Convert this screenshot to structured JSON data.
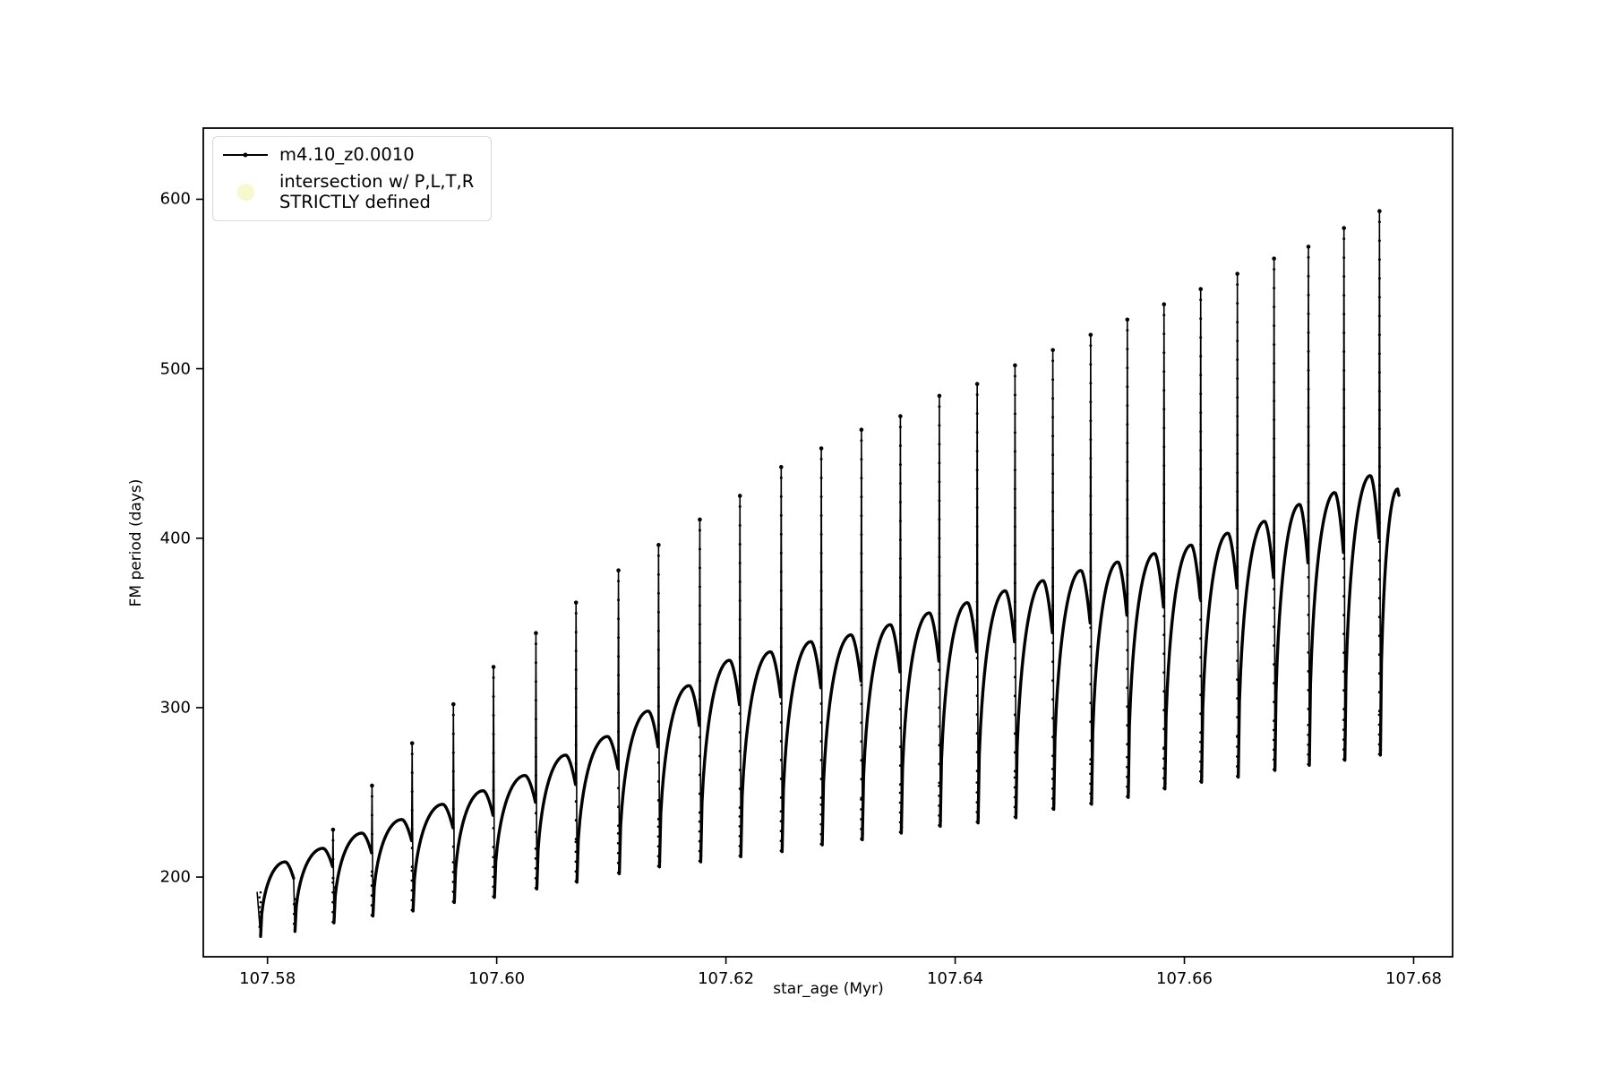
{
  "chart_data": {
    "type": "line",
    "title": "",
    "xlabel": "star_age (Myr)",
    "ylabel": "FM period (days)",
    "xlim": [
      107.5744,
      107.6834
    ],
    "ylim": [
      153,
      642
    ],
    "grid": false,
    "x_ticks": [
      {
        "v": 107.58,
        "label": "107.58"
      },
      {
        "v": 107.6,
        "label": "107.60"
      },
      {
        "v": 107.62,
        "label": "107.62"
      },
      {
        "v": 107.64,
        "label": "107.64"
      },
      {
        "v": 107.66,
        "label": "107.66"
      },
      {
        "v": 107.68,
        "label": "107.68"
      }
    ],
    "y_ticks": [
      {
        "v": 200,
        "label": "200"
      },
      {
        "v": 300,
        "label": "300"
      },
      {
        "v": 400,
        "label": "400"
      },
      {
        "v": 500,
        "label": "500"
      },
      {
        "v": 600,
        "label": "600"
      }
    ],
    "legend": {
      "position": "upper left",
      "entries": [
        {
          "label": "m4.10_z0.0010",
          "marker": "line-with-dot",
          "color": "#000000"
        },
        {
          "line1": "intersection w/ P,L,T,R",
          "line2": "STRICTLY defined",
          "marker": "circle",
          "color": "#f8f8cd"
        }
      ]
    },
    "series": [
      {
        "name": "m4.10_z0.0010",
        "color": "#000000",
        "marker": ".",
        "pattern": "rising scalloped arcs with narrow V dips and tall thin upward spikes at each cycle boundary",
        "start_point": {
          "x": 107.5791,
          "y": 191
        },
        "end_point": {
          "x": 107.6786,
          "y": 429
        },
        "cycles": [
          {
            "x": 107.5794,
            "dip": 165,
            "arc_top": 209,
            "spike": null
          },
          {
            "x": 107.5824,
            "dip": 168,
            "arc_top": 217,
            "spike": null
          },
          {
            "x": 107.5858,
            "dip": 173,
            "arc_top": 226,
            "spike": 228
          },
          {
            "x": 107.5892,
            "dip": 177,
            "arc_top": 234,
            "spike": 254
          },
          {
            "x": 107.5927,
            "dip": 180,
            "arc_top": 243,
            "spike": 279
          },
          {
            "x": 107.5963,
            "dip": 185,
            "arc_top": 251,
            "spike": 302
          },
          {
            "x": 107.5998,
            "dip": 188,
            "arc_top": 260,
            "spike": 324
          },
          {
            "x": 107.6035,
            "dip": 193,
            "arc_top": 272,
            "spike": 344
          },
          {
            "x": 107.607,
            "dip": 197,
            "arc_top": 283,
            "spike": 362
          },
          {
            "x": 107.6107,
            "dip": 202,
            "arc_top": 298,
            "spike": 381
          },
          {
            "x": 107.6142,
            "dip": 206,
            "arc_top": 313,
            "spike": 396
          },
          {
            "x": 107.6178,
            "dip": 209,
            "arc_top": 328,
            "spike": 411
          },
          {
            "x": 107.6213,
            "dip": 212,
            "arc_top": 333,
            "spike": 425
          },
          {
            "x": 107.6249,
            "dip": 215,
            "arc_top": 339,
            "spike": 442
          },
          {
            "x": 107.6284,
            "dip": 219,
            "arc_top": 343,
            "spike": 453
          },
          {
            "x": 107.6319,
            "dip": 222,
            "arc_top": 349,
            "spike": 464
          },
          {
            "x": 107.6353,
            "dip": 226,
            "arc_top": 356,
            "spike": 472
          },
          {
            "x": 107.6387,
            "dip": 230,
            "arc_top": 362,
            "spike": 484
          },
          {
            "x": 107.642,
            "dip": 232,
            "arc_top": 369,
            "spike": 491
          },
          {
            "x": 107.6453,
            "dip": 235,
            "arc_top": 375,
            "spike": 502
          },
          {
            "x": 107.6486,
            "dip": 240,
            "arc_top": 381,
            "spike": 511
          },
          {
            "x": 107.6519,
            "dip": 243,
            "arc_top": 386,
            "spike": 520
          },
          {
            "x": 107.6551,
            "dip": 247,
            "arc_top": 391,
            "spike": 529
          },
          {
            "x": 107.6583,
            "dip": 252,
            "arc_top": 396,
            "spike": 538
          },
          {
            "x": 107.6615,
            "dip": 256,
            "arc_top": 403,
            "spike": 547
          },
          {
            "x": 107.6647,
            "dip": 259,
            "arc_top": 410,
            "spike": 556
          },
          {
            "x": 107.6679,
            "dip": 263,
            "arc_top": 420,
            "spike": 565
          },
          {
            "x": 107.6709,
            "dip": 266,
            "arc_top": 427,
            "spike": 572
          },
          {
            "x": 107.674,
            "dip": 269,
            "arc_top": 437,
            "spike": 583
          },
          {
            "x": 107.6771,
            "dip": 272,
            "arc_top": null,
            "spike": 593
          }
        ]
      }
    ]
  }
}
